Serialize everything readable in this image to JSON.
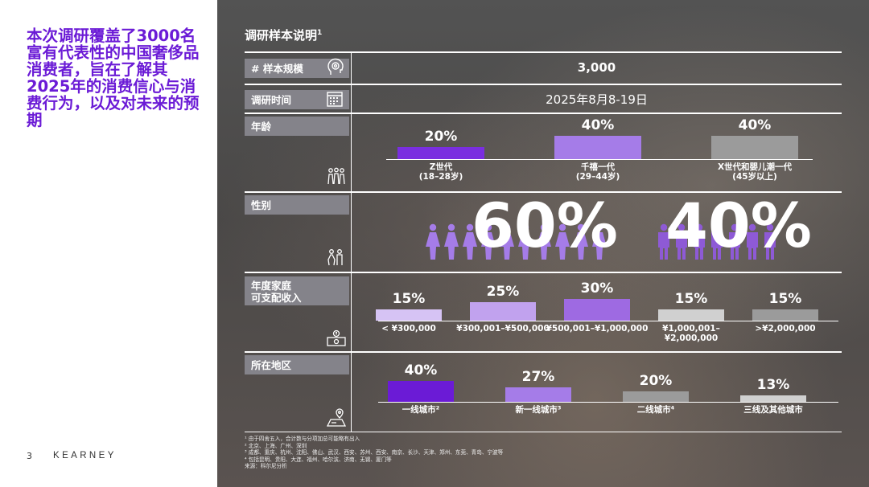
{
  "headline": "本次调研覆盖了3000名富有代表性的中国奢侈品消费者，旨在了解其2025年的消费信心与消费行为，以及对未来的预期",
  "page_number": "3",
  "brand": "KEARNEY",
  "panel": {
    "title": "调研样本说明",
    "title_sup": "1",
    "rows": {
      "sample": {
        "label": "# 样本规模",
        "value": "3,000",
        "icon": "target-head-icon"
      },
      "time": {
        "label": "调研时间",
        "value": "2025年8月8-19日",
        "icon": "calendar-icon"
      },
      "age": {
        "label": "年龄",
        "icon": "group-people-icon"
      },
      "gender": {
        "label": "性别",
        "icon": "couple-icon"
      },
      "income": {
        "label": "年度家庭\n可支配收入",
        "icon": "money-icon"
      },
      "region": {
        "label": "所在地区",
        "icon": "location-icon"
      }
    },
    "gender": {
      "female_pct": "60%",
      "male_pct": "40%",
      "female_color": "#a57ce8",
      "male_color": "#8e5ad6"
    }
  },
  "chart_data": [
    {
      "type": "bar",
      "name": "age",
      "categories": [
        "Z世代\n(18–28岁)",
        "千禧一代\n(29–44岁)",
        "X世代和婴儿潮一代\n(45岁以上)"
      ],
      "values": [
        20,
        40,
        40
      ],
      "labels": [
        "20%",
        "40%",
        "40%"
      ],
      "colors": [
        "#7a2ee0",
        "#a57ce8",
        "#9b9b9b"
      ]
    },
    {
      "type": "bar",
      "name": "income",
      "categories": [
        "< ¥300,000",
        "¥300,001–¥500,000",
        "¥500,001–¥1,000,000",
        "¥1,000,001–\n¥2,000,000",
        ">¥2,000,000"
      ],
      "values": [
        15,
        25,
        30,
        15,
        15
      ],
      "labels": [
        "15%",
        "25%",
        "30%",
        "15%",
        "15%"
      ],
      "colors": [
        "#d6c3f4",
        "#c1a2ee",
        "#9e6ae2",
        "#d0d0d0",
        "#9b9b9b"
      ]
    },
    {
      "type": "bar",
      "name": "region",
      "categories": [
        "一线城市²",
        "新一线城市³",
        "二线城市⁴",
        "三线及其他城市"
      ],
      "values": [
        40,
        27,
        20,
        13
      ],
      "labels": [
        "40%",
        "27%",
        "20%",
        "13%"
      ],
      "colors": [
        "#6b1bd6",
        "#a57ce8",
        "#9b9b9b",
        "#d0d0d0"
      ]
    }
  ],
  "footnotes": [
    "¹ 由于四舍五入，合计数与分项加总可能略有出入",
    "² 北京、上海、广州、深圳",
    "³ 成都、重庆、杭州、沈阳、佛山、武汉、西安、苏州、西安、南京、长沙、天津、郑州、东莞、青岛、宁波等",
    "⁴ 包括昆明、贵阳、大连、福州、哈尔滨、济南、无锡、厦门等",
    "来源：科尔尼分析"
  ]
}
